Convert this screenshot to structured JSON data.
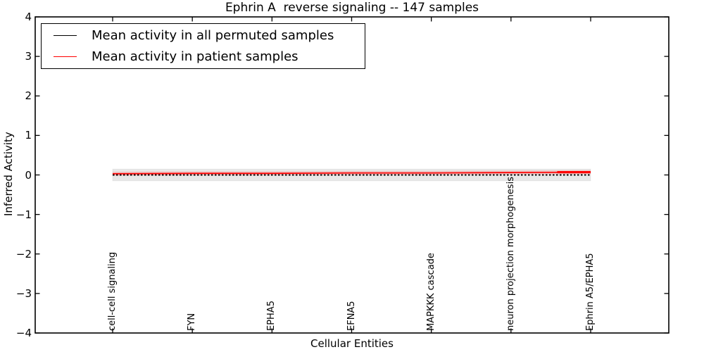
{
  "chart_data": {
    "type": "line",
    "title": "Ephrin A  reverse signaling -- 147 samples",
    "xlabel": "Cellular Entities",
    "ylabel": "Inferred Activity",
    "ylim": [
      -4,
      4
    ],
    "yticks": [
      4,
      3,
      2,
      1,
      0,
      -1,
      -2,
      -3,
      -4
    ],
    "grid": false,
    "legend_position": "upper left",
    "x_axis": {
      "n_points": 61,
      "tick_indices": [
        0,
        10,
        20,
        30,
        40,
        50,
        60
      ],
      "tick_labels": [
        "cell-cell signaling",
        "FYN",
        "EPHA5",
        "EFNA5",
        "MAPKKK cascade",
        "neuron projection morphogenesis",
        "Ephrin A5/EPHA5"
      ]
    },
    "series": [
      {
        "name": "Mean activity in all permuted samples",
        "color": "#000000",
        "line_style": "dashed",
        "values_at_ticks": [
          0.0,
          0.0,
          0.0,
          0.0,
          0.0,
          0.0,
          0.0
        ],
        "band": {
          "halfwidth": 0.15,
          "color": "rgba(0,0,0,0.09)",
          "edge": "rgba(0,0,0,0.05)"
        }
      },
      {
        "name": "Mean activity in patient samples",
        "color": "#ff0000",
        "line_style": "solid",
        "values_at_ticks": [
          0.03,
          0.04,
          0.04,
          0.05,
          0.05,
          0.06,
          0.07
        ],
        "band": {
          "halfwidth": 0.05,
          "color": "rgba(255,0,0,0.16)"
        },
        "thick_end": true
      }
    ]
  }
}
